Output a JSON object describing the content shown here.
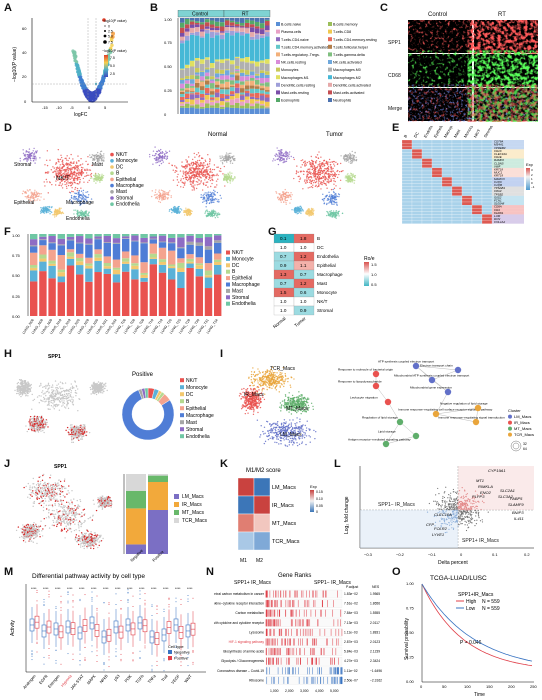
{
  "panels": [
    "A",
    "B",
    "C",
    "D",
    "E",
    "F",
    "G",
    "H",
    "I",
    "J",
    "K",
    "L",
    "M",
    "N",
    "O"
  ],
  "A": {
    "xlabel": "logFC",
    "ylabel": "−log10(P value)",
    "legend_title": "−log10(P value)",
    "size_title": "−log10(P value)",
    "x_ticks": [
      "-15",
      "-10",
      "-5",
      "0",
      "5"
    ],
    "y_ticks": [
      "0",
      "20",
      "40",
      "60"
    ],
    "color_ticks": [
      "2.5",
      "5.0",
      "7.5"
    ],
    "size_ticks": [
      "0",
      "2.5",
      "5.0",
      "7.5"
    ]
  },
  "B": {
    "groups": [
      "Control",
      "RT"
    ],
    "y_ticks": [
      "0",
      "0.25",
      "0.50",
      "0.75",
      "1.00"
    ],
    "legend": [
      {
        "name": "B.cells.naive",
        "color": "#5b8fd6"
      },
      {
        "name": "B.cells.memory",
        "color": "#9bbe5a"
      },
      {
        "name": "Plasma.cells",
        "color": "#e8a1c6"
      },
      {
        "name": "T.cells.CD8",
        "color": "#f0c84f"
      },
      {
        "name": "T.cells.CD4.naive",
        "color": "#8e6bc0"
      },
      {
        "name": "T.cells.CD4.memory.resting",
        "color": "#e86a5a"
      },
      {
        "name": "T.cells.CD4.memory.activated",
        "color": "#63c7c9"
      },
      {
        "name": "T.cells.follicular.helper",
        "color": "#b27d4a"
      },
      {
        "name": "T.cells.regulatory..Tregs.",
        "color": "#f2b07a"
      },
      {
        "name": "T.cells.gamma.delta",
        "color": "#7fbf7f"
      },
      {
        "name": "NK.cells.resting",
        "color": "#d98cd9"
      },
      {
        "name": "NK.cells.activated",
        "color": "#6fa8dc"
      },
      {
        "name": "Monocytes",
        "color": "#c9c95a"
      },
      {
        "name": "Macrophages.M0",
        "color": "#b0b0b0"
      },
      {
        "name": "Macrophages.M1",
        "color": "#e0e060"
      },
      {
        "name": "Macrophages.M2",
        "color": "#46b8d6"
      },
      {
        "name": "Dendritic.cells.resting",
        "color": "#9f9fd9"
      },
      {
        "name": "Dendritic.cells.activated",
        "color": "#e6a9a9"
      },
      {
        "name": "Mast.cells.resting",
        "color": "#7a4da8"
      },
      {
        "name": "Mast.cells.activated",
        "color": "#c44e52"
      },
      {
        "name": "Eosinophils",
        "color": "#55a868"
      },
      {
        "name": "Neutrophils",
        "color": "#4c72b0"
      }
    ]
  },
  "C": {
    "cols": [
      "Control",
      "RT"
    ],
    "rows": [
      "SPP1",
      "CD68",
      "Merge"
    ]
  },
  "D": {
    "titles": [
      "",
      "Normal",
      "Tumor"
    ],
    "labels": [
      "NK/T",
      "Monocyte",
      "DC",
      "B",
      "Epithelial",
      "Macrophage",
      "Mast",
      "Stromal",
      "Endothelia"
    ],
    "colors": [
      "#e9524f",
      "#5ab1d8",
      "#f3c86e",
      "#b5d98f",
      "#f4a38e",
      "#4f7dd6",
      "#a6a6a6",
      "#8e6cc4",
      "#6fc7a4"
    ],
    "map_labels": [
      {
        "t": "NK/T",
        "p": 0
      },
      {
        "t": "Stromal",
        "p": 0
      },
      {
        "t": "Mast",
        "p": 0
      },
      {
        "t": "Epithelial",
        "p": 0
      },
      {
        "t": "Macrophage",
        "p": 0
      },
      {
        "t": "Endothelia",
        "p": 0
      }
    ]
  },
  "E": {
    "clusters": [
      "B",
      "DC",
      "Endothelia",
      "Epithelial",
      "Macrophage",
      "Mast",
      "Monocyte",
      "NK/T",
      "Stromal"
    ],
    "genes": [
      "CD79A",
      "MS4A1",
      "VPREB3",
      "CD1C",
      "CLEC10A",
      "CD1E",
      "RAMP2",
      "CLDN5",
      "VWF",
      "KRT18",
      "MUC1",
      "KRT19",
      "MARCO",
      "C1QC",
      "C1QB",
      "TPSAB1",
      "CPA3",
      "TPSB2",
      "G0S2",
      "FCN1",
      "S100A8",
      "CD8A",
      "CD4",
      "KLRD1",
      "LUM",
      "DCN",
      "COL1A2"
    ],
    "legend_title": "Exp",
    "legend_ticks": [
      "3",
      "2",
      "1",
      "0",
      "−1",
      "−2"
    ]
  },
  "F": {
    "samples": [
      "LUNG_N06",
      "LUNG_N08",
      "LUNG_N09",
      "LUNG_N18",
      "LUNG_N19",
      "LUNG_N20",
      "LUNG_N28",
      "LUNG_N30",
      "LUNG_N31",
      "LUNG_N34",
      "LUNG_T06",
      "LUNG_T08",
      "LUNG_T09",
      "LUNG_T18",
      "LUNG_T19",
      "LUNG_T20",
      "LUNG_T25",
      "LUNG_T28",
      "LUNG_T30",
      "LUNG_T31",
      "LUNG_T34"
    ],
    "y_ticks": [
      "0.00",
      "0.25",
      "0.50",
      "0.75",
      "1.00"
    ],
    "legend": [
      "NK/T",
      "Monocyte",
      "DC",
      "B",
      "Epithelial",
      "Macrophage",
      "Mast",
      "Stromal",
      "Endothelia"
    ]
  },
  "G": {
    "rows": [
      "B",
      "DC",
      "Endothelia",
      "Epithelial",
      "Macrophage",
      "Mast",
      "Monocyte",
      "NK/T",
      "Stromal"
    ],
    "cols": [
      "Normal",
      "Tumor"
    ],
    "values": [
      [
        0.1,
        1.8
      ],
      [
        1.0,
        1.0
      ],
      [
        0.7,
        1.2
      ],
      [
        0.9,
        1.1
      ],
      [
        1.3,
        0.7
      ],
      [
        0.7,
        1.2
      ],
      [
        1.5,
        0.6
      ],
      [
        1.0,
        1.0
      ],
      [
        1.0,
        0.9
      ]
    ],
    "legend_title": "Ro/e",
    "legend_ticks": [
      "1.5",
      "1.0",
      "0.5"
    ]
  },
  "H": {
    "gene": "SPP1",
    "donut_title": "Positive",
    "legend": [
      "NK/T",
      "Monocyte",
      "DC",
      "B",
      "Epithelial",
      "Macrophage",
      "Mast",
      "Stromal",
      "Endothelia"
    ]
  },
  "I": {
    "labels": [
      "TCR_Macs",
      "IR_Macs",
      "MT_Macs",
      "LM_Macs"
    ],
    "legend_title": "Cluster",
    "pathways": [
      "ATP synthesis coupled electron transport",
      "Electron transport chain",
      "Response to molecule of bacterial origin",
      "Mitochondrial ATP synthesis coupled electron transport",
      "Response to lipopolysaccharide",
      "Mitochondrial gene expression",
      "Leukocyte migration",
      "Immune response–regulating cell surface receptor signaling pathway",
      "Negative regulation of lipid storage",
      "Regulation of lipid storage",
      "Immune response–regulating signal transduction",
      "Lipid storage",
      "Antigen receptor–mediated signaling pathway"
    ],
    "size_ticks": [
      "32",
      "64"
    ]
  },
  "J": {
    "gene": "SPP1",
    "legend": [
      "LM_Macs",
      "IR_Macs",
      "MT_Macs",
      "TCR_Macs"
    ],
    "x_ticks": [
      "Negative",
      "Positive"
    ]
  },
  "K": {
    "title": "M1/M2 score",
    "rows": [
      "LM_Macs",
      "IR_Macs",
      "MT_Macs",
      "TCR_Macs"
    ],
    "cols": [
      "M1",
      "M2"
    ],
    "legend_title": "Exp",
    "legend_ticks": [
      "0.15",
      "0.10",
      "0.05",
      "0"
    ]
  },
  "L": {
    "xlabel": "Delta percent",
    "ylabel": "Log₂ fold change",
    "genes": [
      "CYP19A1",
      "MT1",
      "RIMKLA",
      "ENO2",
      "SLC2A1",
      "PLPP3",
      "SLC3A2",
      "FABP5",
      "SLAMF9",
      "BNIP3",
      "IL411",
      "CLEC10A",
      "CFP",
      "FOLR2",
      "LYVE1"
    ],
    "group_labels": [
      "SPP1+ IR_Macs",
      "SPP1− IR_Macs"
    ],
    "x_ticks": [
      "−0.3",
      "−0.2",
      "−0.1",
      "0",
      "0.1",
      "0.2"
    ]
  },
  "M": {
    "title": "Differential pathway activity by cell type",
    "ylabel": "Activity",
    "pathways": [
      "Androgen",
      "EGFR",
      "Estrogen",
      "Hypoxia",
      "JAK-STAT",
      "MAPK",
      "NFkB",
      "p53",
      "PI3K",
      "TGFb",
      "TNFa",
      "Trail",
      "VEGF",
      "WNT"
    ],
    "legend_title": "Cell type",
    "legend": [
      "Negative",
      "Positive"
    ]
  },
  "N": {
    "title": "Gene Ranks",
    "header_left": "SPP1+ IR_Macs",
    "header_right": "SPP1− IR_Macs",
    "col_p": "P.adjust",
    "col_nes": "NES",
    "rows": [
      {
        "name": "Central carbon metabolism in cancer",
        "p": "1.83e−02",
        "nes": "1.9565"
      },
      {
        "name": "Cytokine–cytokine receptor interaction",
        "p": "7.61e−02",
        "nes": "1.8656"
      },
      {
        "name": "Carbon metabolism",
        "p": "7.84e−03",
        "nes": "1.5555"
      },
      {
        "name": "Viral protein interaction with cytokine and cytokine receptor",
        "p": "7.13e−03",
        "nes": "2.0117"
      },
      {
        "name": "Lysosome",
        "p": "1.11e−03",
        "nes": "1.8831"
      },
      {
        "name": "HIF-1 signaling pathway",
        "p": "2.87e−03",
        "nes": "2.0123"
      },
      {
        "name": "Biosynthesis of amino acids",
        "p": "5.84e−03",
        "nes": "2.1239"
      },
      {
        "name": "Glycolysis / Gluconeogenesis",
        "p": "4.27e−03",
        "nes": "2.3424"
      },
      {
        "name": "Coronavirus disease – Covid-19",
        "p": "1.11e−02",
        "nes": "−1.6496"
      },
      {
        "name": "Ribosome",
        "p": "2.50e−07",
        "nes": "−2.3162"
      }
    ],
    "x_ticks": [
      "1,000",
      "2,000",
      "3,000",
      "4,000",
      "5,000"
    ]
  },
  "O": {
    "title": "TCGA-LUAD/LUSC",
    "legend_title": "SPP1+IR_Macs",
    "legend": [
      {
        "name": "High",
        "n": "N = 559",
        "color": "#e0404a"
      },
      {
        "name": "Low",
        "n": "N = 559",
        "color": "#3a74c2"
      }
    ],
    "pvalue": "P = 0.046",
    "xlabel": "Time",
    "ylabel": "Survival probability",
    "x_ticks": [
      "0",
      "50",
      "100",
      "150",
      "200",
      "250"
    ],
    "y_ticks": [
      "0.00",
      "0.25",
      "0.50",
      "0.75",
      "1.00"
    ]
  }
}
